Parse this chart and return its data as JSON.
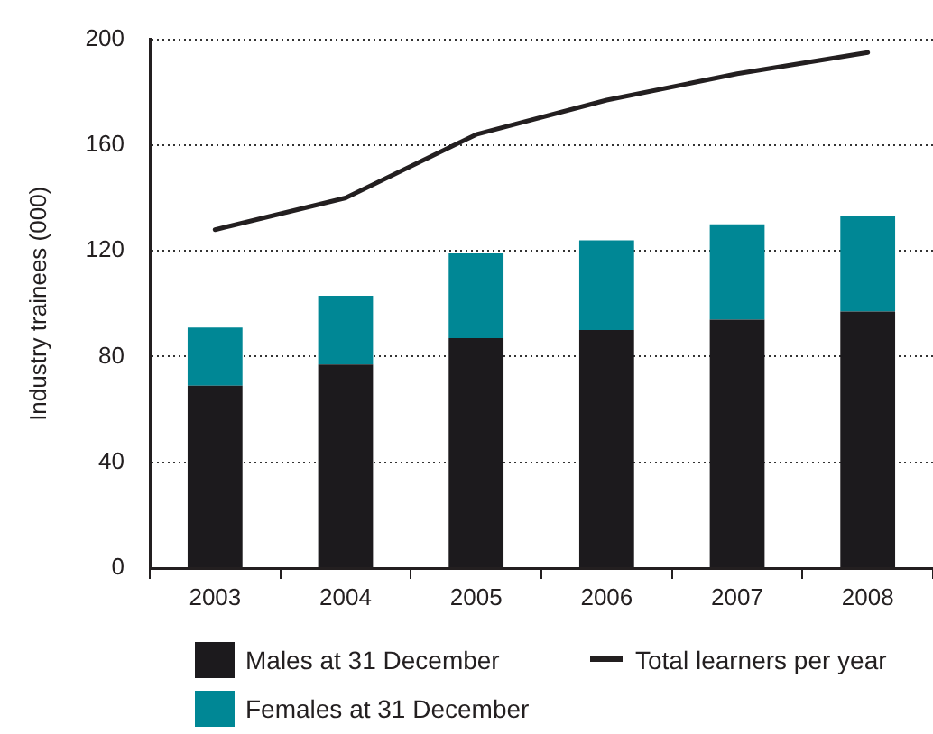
{
  "chart_data": {
    "type": "bar",
    "stacked": true,
    "ylabel": "Industry trainees (000)",
    "categories": [
      "2003",
      "2004",
      "2005",
      "2006",
      "2007",
      "2008"
    ],
    "series": [
      {
        "name": "Males at 31 December",
        "color": "#1c1a1d",
        "values": [
          69,
          77,
          87,
          90,
          94,
          97
        ]
      },
      {
        "name": "Females at 31 December",
        "color": "#008795",
        "values": [
          22,
          26,
          32,
          34,
          36,
          36
        ]
      },
      {
        "name": "Total learners per year",
        "type": "line",
        "color": "#231f20",
        "values": [
          128,
          140,
          164,
          177,
          187,
          195
        ]
      }
    ],
    "ylim": [
      0,
      200
    ],
    "yticks": [
      0,
      40,
      80,
      120,
      160,
      200
    ],
    "grid": "y",
    "legend": "bottom",
    "marker": "none",
    "line_style": "solid"
  }
}
